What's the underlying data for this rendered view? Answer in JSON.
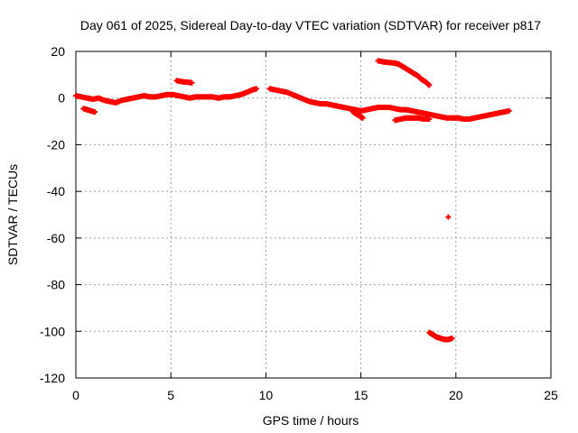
{
  "chart_data": {
    "type": "scatter",
    "title": "Day 061 of 2025, Sidereal Day-to-day VTEC variation (SDTVAR) for receiver p817",
    "xlabel": "GPS time / hours",
    "ylabel": "SDTVAR / TECUs",
    "xlim": [
      0,
      25
    ],
    "ylim": [
      -120,
      20
    ],
    "xticks": [
      0,
      5,
      10,
      15,
      20,
      25
    ],
    "yticks": [
      20,
      0,
      -20,
      -40,
      -60,
      -80,
      -100,
      -120
    ],
    "grid": true,
    "marker": "+",
    "color": "#ff0000",
    "series": [
      {
        "name": "main-band-early",
        "points": [
          [
            0.0,
            1.0
          ],
          [
            0.3,
            0.5
          ],
          [
            0.6,
            0.0
          ],
          [
            0.9,
            -0.5
          ],
          [
            1.2,
            0.0
          ],
          [
            1.5,
            -1.0
          ],
          [
            1.8,
            -1.5
          ],
          [
            2.1,
            -2.0
          ],
          [
            2.4,
            -1.0
          ],
          [
            2.7,
            -0.5
          ],
          [
            3.0,
            0.0
          ],
          [
            3.3,
            0.5
          ],
          [
            3.6,
            1.0
          ],
          [
            3.9,
            0.5
          ],
          [
            4.2,
            0.5
          ],
          [
            4.5,
            1.0
          ],
          [
            4.8,
            1.5
          ],
          [
            5.1,
            1.5
          ],
          [
            5.4,
            1.0
          ],
          [
            5.7,
            0.5
          ],
          [
            6.0,
            0.0
          ],
          [
            6.3,
            0.5
          ],
          [
            6.6,
            0.5
          ],
          [
            6.9,
            0.5
          ],
          [
            7.2,
            0.5
          ],
          [
            7.5,
            0.0
          ],
          [
            7.8,
            0.5
          ],
          [
            8.1,
            0.5
          ],
          [
            8.4,
            1.0
          ],
          [
            8.7,
            1.5
          ],
          [
            9.0,
            2.5
          ],
          [
            9.3,
            3.5
          ],
          [
            9.5,
            4.0
          ]
        ]
      },
      {
        "name": "main-band-late",
        "points": [
          [
            10.2,
            4.0
          ],
          [
            10.5,
            3.5
          ],
          [
            10.8,
            3.0
          ],
          [
            11.1,
            2.5
          ],
          [
            11.4,
            1.5
          ],
          [
            11.7,
            0.5
          ],
          [
            12.0,
            -0.5
          ],
          [
            12.3,
            -1.5
          ],
          [
            12.6,
            -2.0
          ],
          [
            12.9,
            -2.5
          ],
          [
            13.2,
            -2.5
          ],
          [
            13.5,
            -3.0
          ],
          [
            13.8,
            -3.5
          ],
          [
            14.1,
            -4.0
          ],
          [
            14.4,
            -4.5
          ],
          [
            14.7,
            -5.0
          ],
          [
            15.0,
            -5.5
          ],
          [
            15.3,
            -5.0
          ],
          [
            15.6,
            -4.5
          ],
          [
            15.9,
            -4.0
          ],
          [
            16.2,
            -4.0
          ],
          [
            16.5,
            -4.0
          ],
          [
            16.8,
            -4.5
          ],
          [
            17.1,
            -5.0
          ],
          [
            17.4,
            -5.0
          ],
          [
            17.7,
            -5.5
          ],
          [
            18.0,
            -6.0
          ],
          [
            18.3,
            -6.5
          ],
          [
            18.6,
            -7.0
          ],
          [
            18.9,
            -7.5
          ],
          [
            19.2,
            -8.0
          ],
          [
            19.5,
            -8.5
          ],
          [
            19.8,
            -8.5
          ],
          [
            20.1,
            -8.5
          ],
          [
            20.4,
            -9.0
          ],
          [
            20.7,
            -9.0
          ],
          [
            21.0,
            -8.5
          ],
          [
            21.3,
            -8.0
          ],
          [
            21.6,
            -7.5
          ],
          [
            21.9,
            -7.0
          ],
          [
            22.2,
            -6.5
          ],
          [
            22.5,
            -6.0
          ],
          [
            22.8,
            -5.5
          ]
        ]
      },
      {
        "name": "dip-14-15",
        "points": [
          [
            14.6,
            -6.0
          ],
          [
            14.8,
            -7.0
          ],
          [
            15.0,
            -8.0
          ],
          [
            15.1,
            -8.5
          ]
        ]
      },
      {
        "name": "early-negative",
        "points": [
          [
            0.4,
            -4.5
          ],
          [
            0.6,
            -5.0
          ],
          [
            0.8,
            -5.5
          ],
          [
            1.0,
            -6.0
          ]
        ]
      },
      {
        "name": "upper-5h",
        "points": [
          [
            5.3,
            7.5
          ],
          [
            5.6,
            7.0
          ],
          [
            5.9,
            6.8
          ],
          [
            6.1,
            6.5
          ]
        ]
      },
      {
        "name": "upper-16-18h",
        "points": [
          [
            15.9,
            16.0
          ],
          [
            16.2,
            15.5
          ],
          [
            16.5,
            15.2
          ],
          [
            16.8,
            15.0
          ],
          [
            17.0,
            14.5
          ],
          [
            17.2,
            13.5
          ],
          [
            17.4,
            12.5
          ],
          [
            17.6,
            11.5
          ],
          [
            17.8,
            10.5
          ],
          [
            18.0,
            9.5
          ],
          [
            18.2,
            8.0
          ],
          [
            18.4,
            7.0
          ],
          [
            18.6,
            5.5
          ]
        ]
      },
      {
        "name": "lower-17-19h",
        "points": [
          [
            16.8,
            -9.5
          ],
          [
            17.1,
            -9.0
          ],
          [
            17.4,
            -8.5
          ],
          [
            17.7,
            -8.5
          ],
          [
            18.0,
            -8.5
          ],
          [
            18.3,
            -9.0
          ],
          [
            18.6,
            -9.0
          ]
        ]
      },
      {
        "name": "outlier-51",
        "points": [
          [
            19.6,
            -51.0
          ]
        ]
      },
      {
        "name": "outlier-100",
        "points": [
          [
            18.6,
            -100.5
          ],
          [
            18.8,
            -101.5
          ],
          [
            19.0,
            -102.5
          ],
          [
            19.2,
            -103.0
          ],
          [
            19.4,
            -103.5
          ],
          [
            19.6,
            -103.5
          ],
          [
            19.8,
            -103.0
          ]
        ]
      }
    ]
  }
}
